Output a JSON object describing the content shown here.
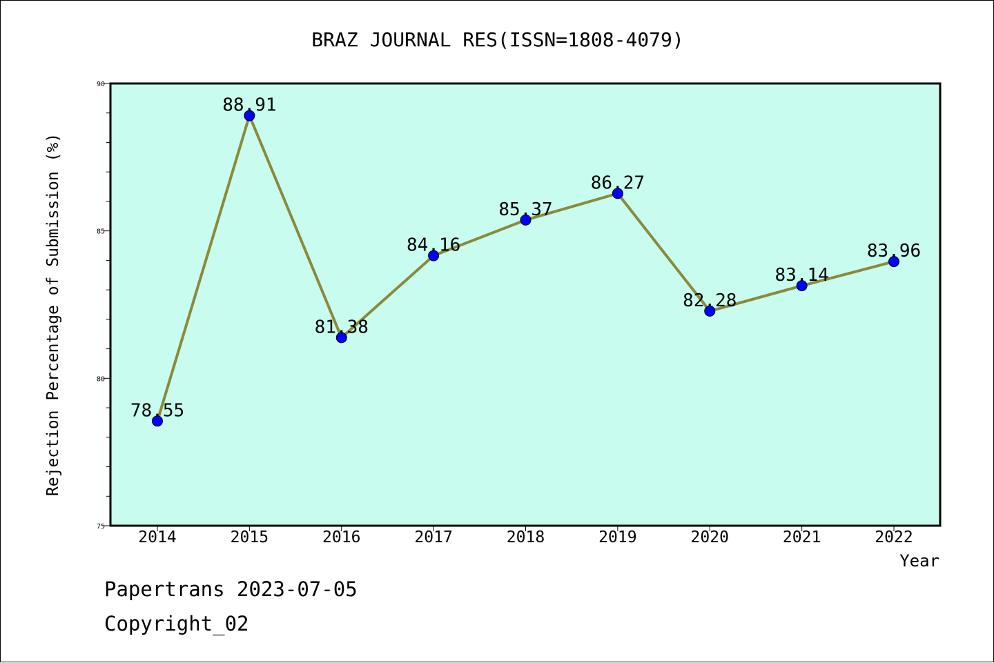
{
  "chart_data": {
    "type": "line",
    "title": "BRAZ JOURNAL RES(ISSN=1808-4079)",
    "xlabel": "Year",
    "ylabel": "Rejection Percentage of Submission (%)",
    "categories": [
      "2014",
      "2015",
      "2016",
      "2017",
      "2018",
      "2019",
      "2020",
      "2021",
      "2022"
    ],
    "values": [
      78.55,
      88.91,
      81.38,
      84.16,
      85.37,
      86.27,
      82.28,
      83.14,
      83.96
    ],
    "data_labels": [
      "78.55",
      "88.91",
      "81.38",
      "84.16",
      "85.37",
      "86.27",
      "82.28",
      "83.14",
      "83.96"
    ],
    "ylim": [
      75,
      90
    ],
    "yticks": [
      "75",
      "80",
      "85",
      "90"
    ],
    "grid": false,
    "colors": {
      "plot_background": "#c8fcee",
      "line": "#8b8a3a",
      "marker": "#0000ff"
    }
  },
  "footer": {
    "line1": "Papertrans 2023-07-05",
    "line2": "Copyright_02"
  }
}
